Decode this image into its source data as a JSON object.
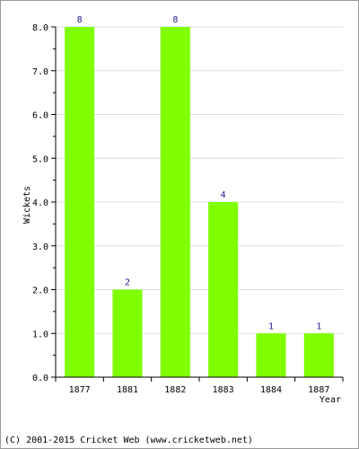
{
  "chart_data": {
    "type": "bar",
    "categories": [
      "1877",
      "1881",
      "1882",
      "1883",
      "1884",
      "1887"
    ],
    "values": [
      8,
      2,
      8,
      4,
      1,
      1
    ],
    "data_labels": [
      "8",
      "2",
      "8",
      "4",
      "1",
      "1"
    ],
    "title": "",
    "xlabel": "Year",
    "ylabel": "Wickets",
    "ylim": [
      0,
      8
    ],
    "yticks": [
      0,
      1,
      2,
      3,
      4,
      5,
      6,
      7,
      8
    ],
    "ytick_labels": [
      "0.0",
      "1.0",
      "2.0",
      "3.0",
      "4.0",
      "5.0",
      "6.0",
      "7.0",
      "8.0"
    ],
    "grid": true,
    "bar_color": "#80ff00",
    "label_color": "#1a1a8c"
  },
  "footer": {
    "copyright": "(C) 2001-2015 Cricket Web (www.cricketweb.net)"
  }
}
